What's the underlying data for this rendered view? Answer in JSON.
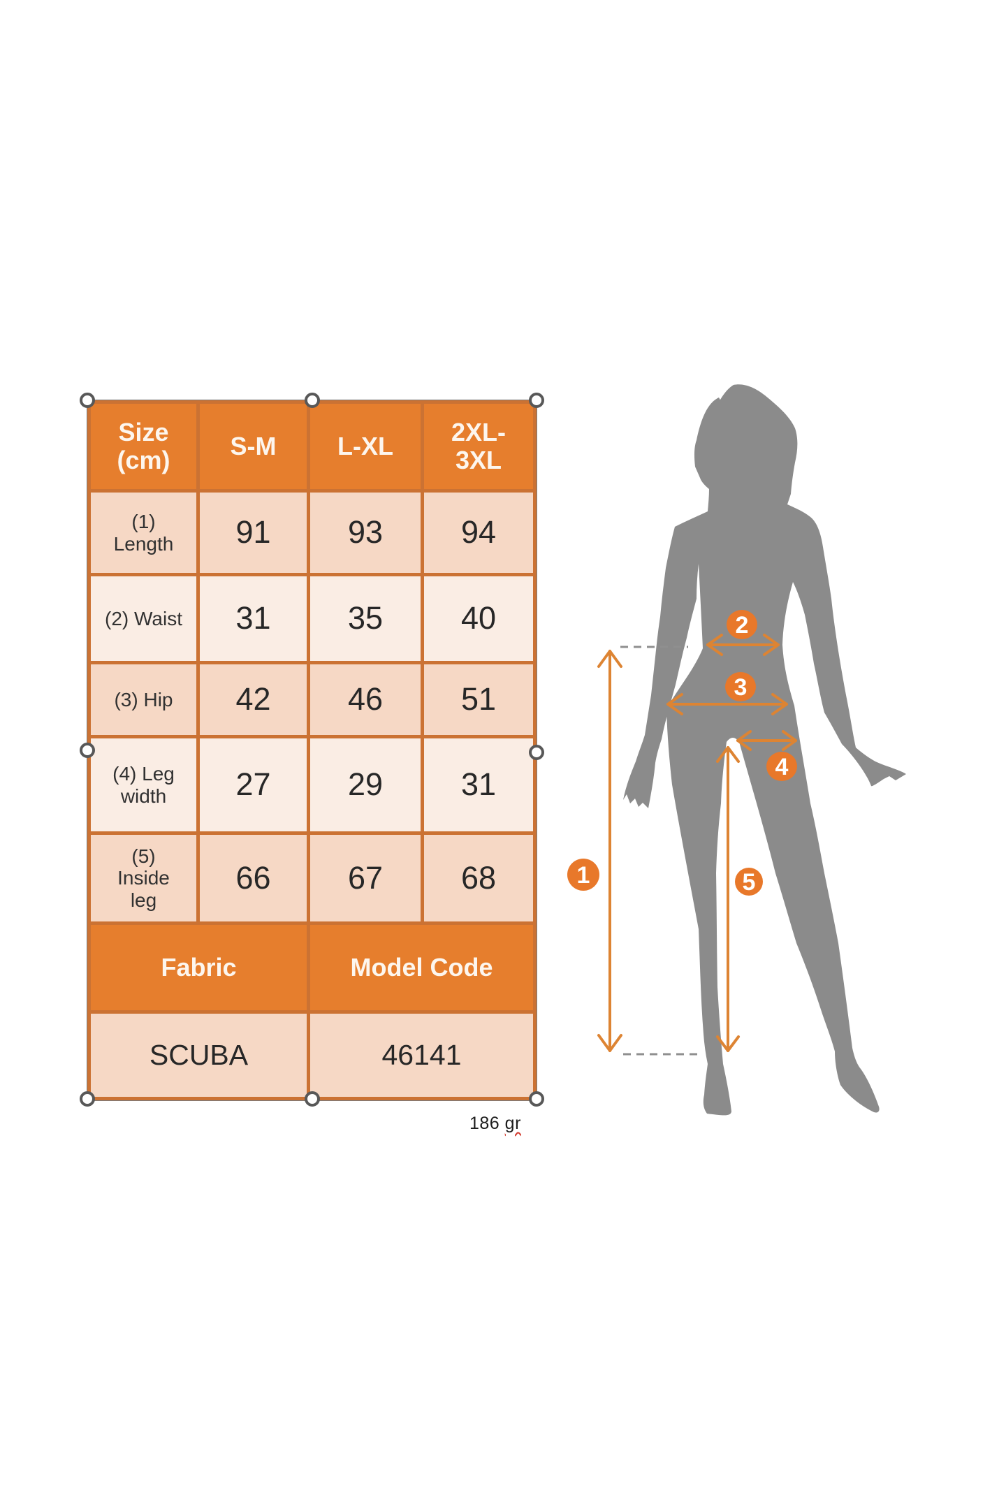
{
  "table": {
    "columns": [
      "Size\n(cm)",
      "S-M",
      "L-XL",
      "2XL-\n3XL"
    ],
    "rows": [
      {
        "label": "(1)\nLength",
        "values": [
          "91",
          "93",
          "94"
        ]
      },
      {
        "label": "(2) Waist",
        "values": [
          "31",
          "35",
          "40"
        ]
      },
      {
        "label": "(3) Hip",
        "values": [
          "42",
          "46",
          "51"
        ]
      },
      {
        "label": "(4) Leg\nwidth",
        "values": [
          "27",
          "29",
          "31"
        ]
      },
      {
        "label": "(5)\nInside\nleg",
        "values": [
          "66",
          "67",
          "68"
        ]
      }
    ],
    "footer": {
      "fabric_label": "Fabric",
      "model_code_label": "Model Code",
      "fabric_value": "SCUBA",
      "model_code_value": "46141"
    }
  },
  "weight_note": {
    "amount": "186",
    "unit": "gr"
  },
  "figure": {
    "markers": [
      "1",
      "2",
      "3",
      "4",
      "5"
    ]
  },
  "colors": {
    "header_orange": "#e67e2d",
    "border_orange": "#cb7233",
    "row_dark": "#f6d8c5",
    "row_light": "#faede4",
    "silhouette_gray": "#8b8b8b",
    "arrow_orange": "#dd8433",
    "marker_orange": "#e8782a",
    "handle_ring": "#585858",
    "note_underline_red": "#d23b2f"
  }
}
